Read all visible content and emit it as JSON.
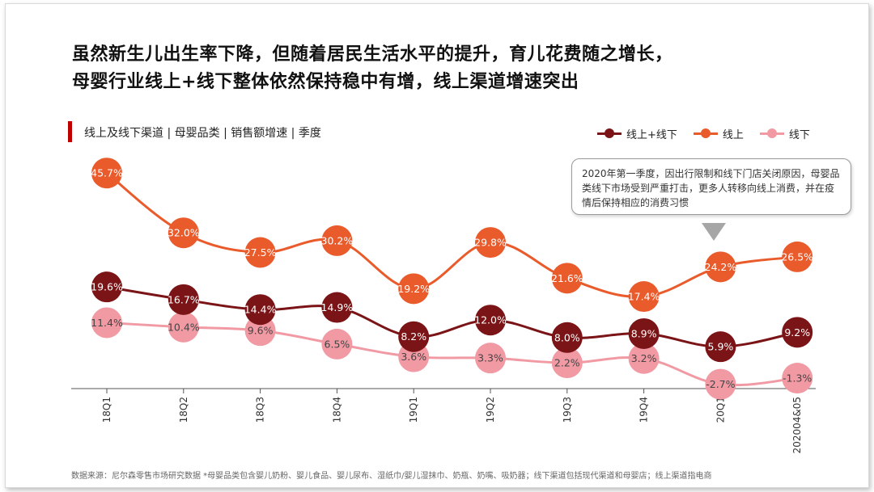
{
  "headline": {
    "line1": "虽然新生儿出生率下降，但随着居民生活水平的提升，育儿花费随之增长，",
    "line2": "母婴行业线上+线下整体依然保持稳中有增，线上渠道增速突出"
  },
  "section_label": "线上及线下渠道 | 母婴品类 | 销售额增速 | 季度",
  "callout": "2020年第一季度，因出行限制和线下门店关闭原因，母婴品类线下市场受到严重打击，更多人转移向线上消费，并在疫情后保持相应的消费习惯",
  "footnote": "数据来源：尼尔森零售市场研究数据  *母婴品类包含婴儿奶粉、婴儿食品、婴儿尿布、湿纸巾/婴儿湿抹巾、奶瓶、奶嘴、吸奶器；线下渠道包括现代渠道和母婴店；线上渠道指电商",
  "colors": {
    "accent_bar": "#c00000",
    "total": "#7b1416",
    "online": "#ea5b2c",
    "offline": "#f19aa4"
  },
  "chart_data": {
    "type": "line",
    "categories": [
      "18Q1",
      "18Q2",
      "18Q3",
      "18Q4",
      "19Q1",
      "19Q2",
      "19Q3",
      "19Q4",
      "20Q1",
      "202004&05"
    ],
    "unit": "%",
    "series": [
      {
        "name": "线上+线下",
        "color": "#7b1416",
        "values": [
          19.6,
          16.7,
          14.4,
          14.9,
          8.2,
          12.0,
          8.0,
          8.9,
          5.9,
          9.2
        ]
      },
      {
        "name": "线上",
        "color": "#ea5b2c",
        "values": [
          45.7,
          32.0,
          27.5,
          30.2,
          19.2,
          29.8,
          21.6,
          17.4,
          24.2,
          26.5
        ]
      },
      {
        "name": "线下",
        "color": "#f19aa4",
        "values": [
          11.4,
          10.4,
          9.6,
          6.5,
          3.6,
          3.3,
          2.2,
          3.2,
          -2.7,
          -1.3
        ]
      }
    ],
    "legend_position": "top-right",
    "grid": false
  }
}
